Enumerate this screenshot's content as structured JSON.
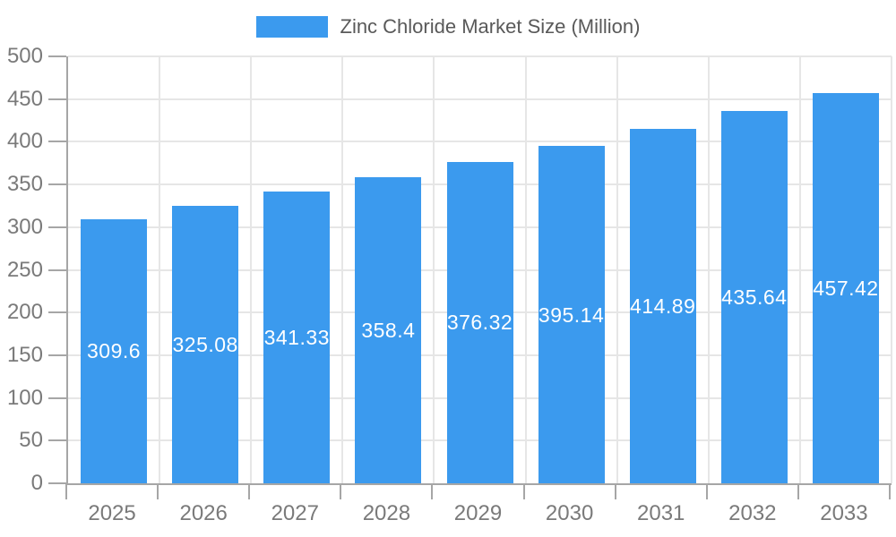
{
  "chart_data": {
    "type": "bar",
    "title": "Zinc Chloride Market Size (Million)",
    "categories": [
      "2025",
      "2026",
      "2027",
      "2028",
      "2029",
      "2030",
      "2031",
      "2032",
      "2033"
    ],
    "series": [
      {
        "name": "Zinc Chloride Market Size (Million)",
        "values": [
          309.6,
          325.08,
          341.33,
          358.4,
          376.32,
          395.14,
          414.89,
          435.64,
          457.42
        ]
      }
    ],
    "value_labels": [
      "309.6",
      "325.08",
      "341.33",
      "358.4",
      "376.32",
      "395.14",
      "414.89",
      "435.64",
      "457.42"
    ],
    "xlabel": "",
    "ylabel": "",
    "ylim": [
      0,
      500
    ],
    "y_tick_step": 50,
    "y_tick_labels": [
      "0",
      "50",
      "100",
      "150",
      "200",
      "250",
      "300",
      "350",
      "400",
      "450",
      "500"
    ],
    "grid": true,
    "legend_position": "top",
    "value_label_position": "inside-center"
  },
  "legend": {
    "label": "Zinc Chloride Market Size (Million)"
  },
  "colors": {
    "bar": "#3B9AEE",
    "grid": "#E6E6E6",
    "axis": "#A6A6A6",
    "tick_label": "#7A7A7A",
    "legend_text": "#595959",
    "value_label": "#FFFFFF",
    "background": "#FFFFFF"
  }
}
